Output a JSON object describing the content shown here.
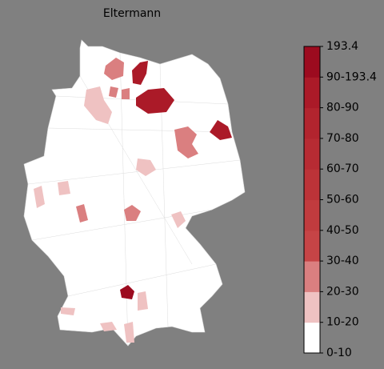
{
  "title": "Eltermann",
  "legend": {
    "labels": [
      "193.4",
      "90-193.4",
      "80-90",
      "70-80",
      "60-70",
      "50-60",
      "40-50",
      "30-40",
      "20-30",
      "10-20",
      "0-10"
    ],
    "colors": [
      "#ffffff",
      "#efc2c2",
      "#da7f80",
      "#c64446",
      "#c13b3e",
      "#bc3338",
      "#b72b33",
      "#b2242e",
      "#ab1a28",
      "#9c0b1f"
    ]
  }
}
